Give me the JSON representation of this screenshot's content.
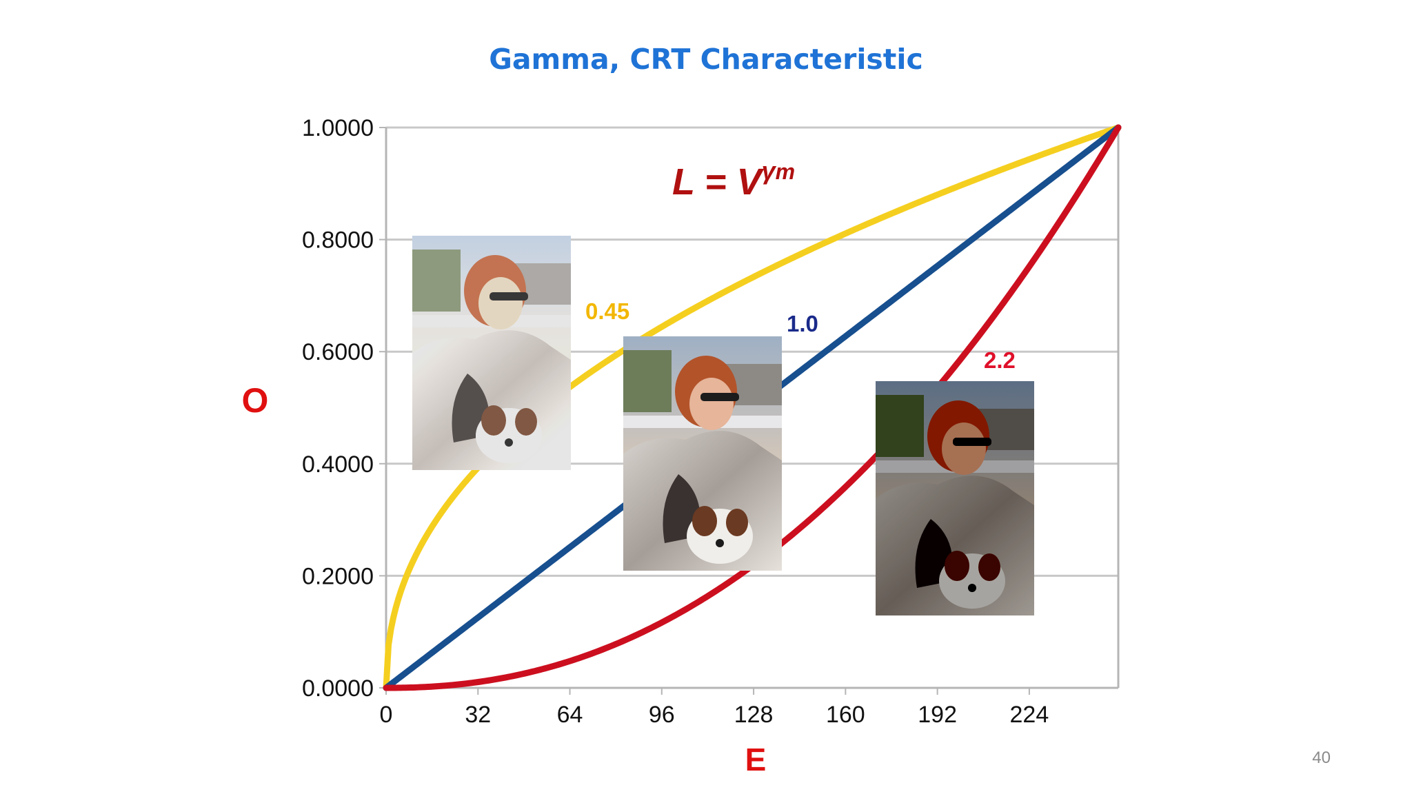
{
  "slide": {
    "title": "Gamma, CRT Characteristic",
    "page_number": "40"
  },
  "formula": {
    "base": "L = V",
    "exponent": "γ",
    "subscript": "m"
  },
  "colors": {
    "title": "#1f73d6",
    "axis_label": "#e01010",
    "formula": "#b01010",
    "gamma_045": "#f5cf1f",
    "gamma_10": "#174f8f",
    "gamma_22": "#cc0f1f",
    "label_045": "#f2b705",
    "label_10": "#1a2a8a",
    "label_22": "#e0102a",
    "grid": "#c8c8c8"
  },
  "chart_data": {
    "type": "line",
    "title": "Gamma, CRT Characteristic",
    "xlabel": "E",
    "ylabel": "O",
    "xlim": [
      0,
      255
    ],
    "ylim": [
      0,
      1
    ],
    "x_ticks": [
      "0",
      "32",
      "64",
      "96",
      "128",
      "160",
      "192",
      "224"
    ],
    "y_ticks": [
      "0.0000",
      "0.2000",
      "0.4000",
      "0.6000",
      "0.8000",
      "1.0000"
    ],
    "grid": true,
    "x": [
      0,
      16,
      32,
      48,
      64,
      80,
      96,
      112,
      128,
      144,
      160,
      176,
      192,
      208,
      224,
      240,
      255
    ],
    "series": [
      {
        "name": "0.45",
        "gamma": 0.45,
        "values": [
          0,
          0.288,
          0.393,
          0.472,
          0.536,
          0.592,
          0.644,
          0.69,
          0.733,
          0.773,
          0.811,
          0.846,
          0.88,
          0.912,
          0.943,
          0.973,
          1.0
        ]
      },
      {
        "name": "1.0",
        "gamma": 1.0,
        "values": [
          0,
          0.063,
          0.125,
          0.188,
          0.251,
          0.314,
          0.376,
          0.439,
          0.502,
          0.565,
          0.627,
          0.69,
          0.753,
          0.816,
          0.878,
          0.941,
          1.0
        ]
      },
      {
        "name": "2.2",
        "gamma": 2.2,
        "values": [
          0,
          0.002,
          0.01,
          0.025,
          0.048,
          0.078,
          0.116,
          0.164,
          0.219,
          0.284,
          0.359,
          0.442,
          0.535,
          0.639,
          0.751,
          0.875,
          1.0
        ]
      }
    ]
  }
}
